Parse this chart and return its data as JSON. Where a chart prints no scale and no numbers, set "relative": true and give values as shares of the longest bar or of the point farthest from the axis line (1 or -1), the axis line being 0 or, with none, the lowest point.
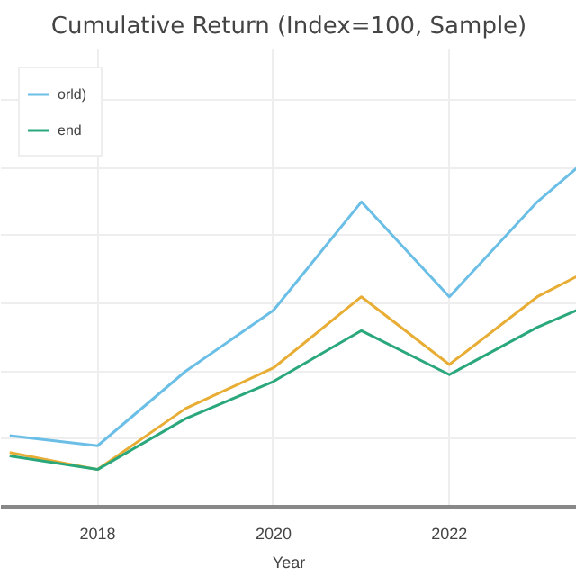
{
  "chart_data": {
    "type": "line",
    "title": "Cumulative Return (Index=100, Sample)",
    "xlabel": "Year",
    "relative": true,
    "x": [
      2017,
      2018,
      2019,
      2020,
      2021,
      2022,
      2023,
      2023.45
    ],
    "xlim": [
      2016.9,
      2023.45
    ],
    "xticks": [
      2018,
      2020,
      2022
    ],
    "series": [
      {
        "name": "orld)",
        "color": "#6bbfe6",
        "values": [
          0.21,
          0.18,
          0.4,
          0.58,
          0.9,
          0.62,
          0.9,
          1.0
        ]
      },
      {
        "color": "#e8ad35",
        "values": [
          0.16,
          0.11,
          0.29,
          0.41,
          0.62,
          0.42,
          0.62,
          0.68
        ]
      },
      {
        "name": "end",
        "color": "#2aa87c",
        "values": [
          0.15,
          0.11,
          0.26,
          0.37,
          0.52,
          0.39,
          0.53,
          0.58
        ]
      }
    ],
    "grid": true,
    "legend": "top left",
    "line_style": "solid",
    "marker": "none"
  }
}
